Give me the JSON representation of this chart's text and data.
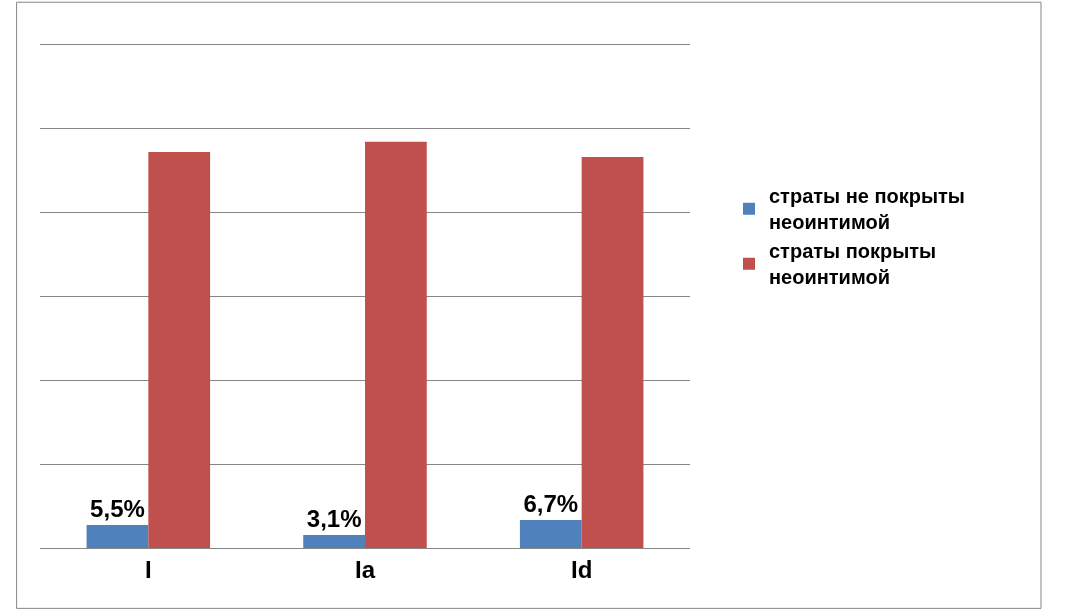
{
  "chart_data": {
    "type": "bar",
    "categories": [
      "I",
      "Ia",
      "Id"
    ],
    "series": [
      {
        "name": "страты не покрыты неоинтимой",
        "color": "#4f81bd",
        "values": [
          5.5,
          3.1,
          6.7
        ],
        "value_labels": [
          "5,5%",
          "3,1%",
          "6,7%"
        ]
      },
      {
        "name": "страты покрыты неоинтимой",
        "color": "#c0504d",
        "values": [
          94.5,
          96.9,
          93.3
        ]
      }
    ],
    "ylim": [
      0,
      120
    ],
    "yticks": [
      {
        "value": 0,
        "label": null
      },
      {
        "value": 20,
        "label": null
      },
      {
        "value": 40,
        "label": null
      },
      {
        "value": 60,
        "label": null
      },
      {
        "value": 80,
        "label": null
      },
      {
        "value": 100,
        "label": null
      },
      {
        "value": 120,
        "label": null
      }
    ],
    "grid": "y",
    "legend": "right",
    "tick_labels": "x"
  }
}
